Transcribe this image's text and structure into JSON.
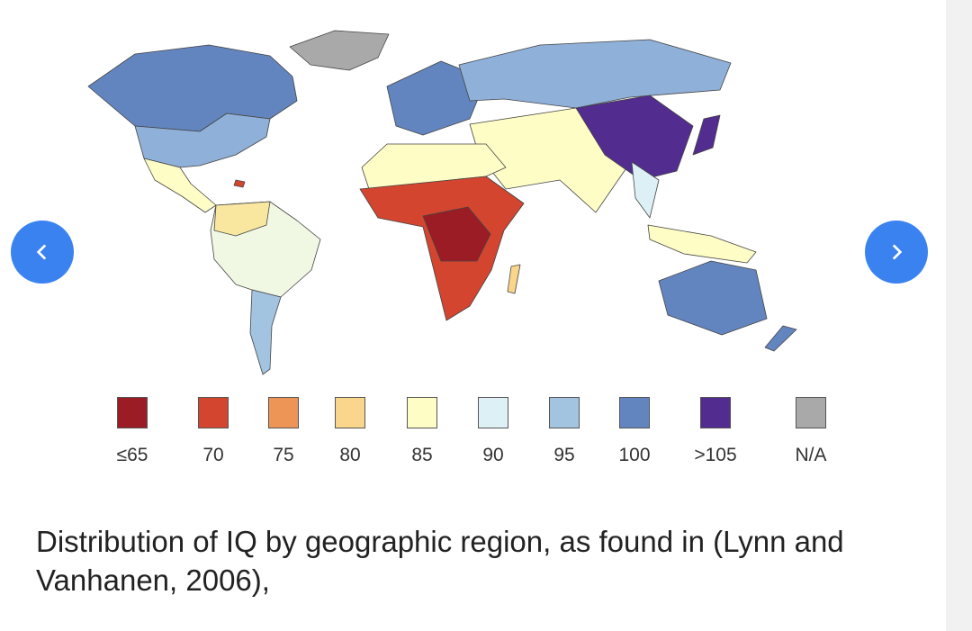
{
  "carousel": {
    "prev_icon": "chevron-left-icon",
    "next_icon": "chevron-right-icon",
    "accent": "#3a82f0"
  },
  "legend": [
    {
      "label": "≤65",
      "color": "#9b1c25"
    },
    {
      "label": "70",
      "color": "#d3452f"
    },
    {
      "label": "75",
      "color": "#ec9557"
    },
    {
      "label": "80",
      "color": "#f9d68b"
    },
    {
      "label": "85",
      "color": "#fefdc6"
    },
    {
      "label": "90",
      "color": "#dcf0f5"
    },
    {
      "label": "95",
      "color": "#a2c4e0"
    },
    {
      "label": "100",
      "color": "#6385bf"
    },
    {
      "label": ">105",
      "color": "#532c90"
    },
    {
      "label": "N/A",
      "color": "#a9a9a9"
    }
  ],
  "caption": "Distribution of IQ by geographic region, as found in (Lynn and Vanhanen, 2006),"
}
